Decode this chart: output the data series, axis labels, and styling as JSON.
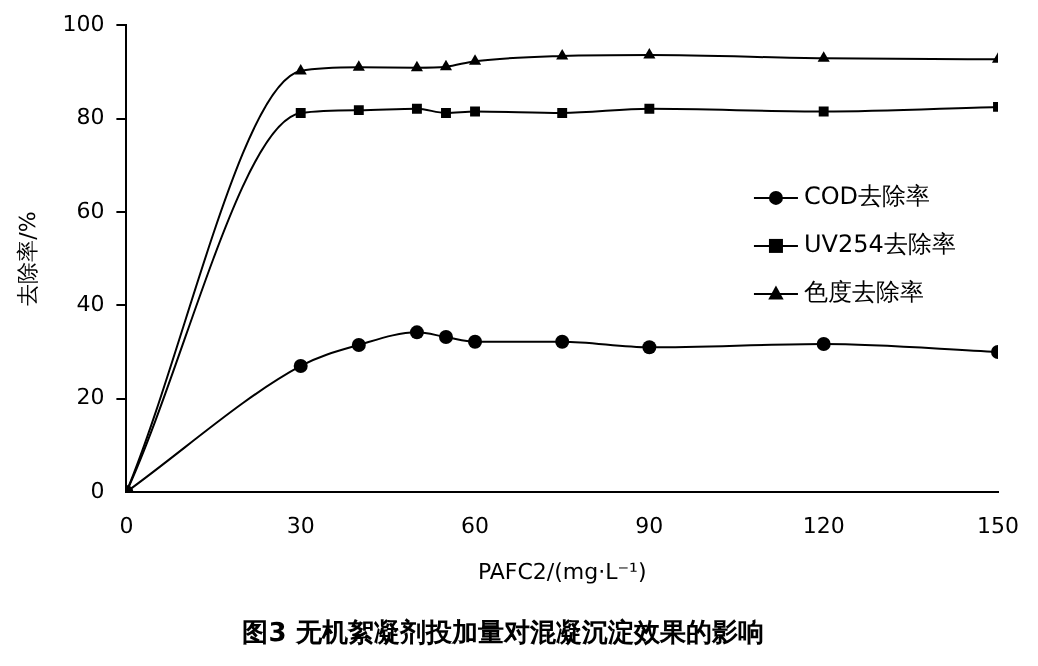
{
  "chart_data": {
    "type": "line",
    "title": "图3 无机絮凝剂投加量对混凝沉淀效果的影响",
    "xlabel": "PAFC2/(mg·L⁻¹)",
    "ylabel": "去除率/%",
    "x": [
      0,
      30,
      40,
      50,
      55,
      60,
      75,
      90,
      120,
      150
    ],
    "series": [
      {
        "name": "COD去除率",
        "color": "#000000",
        "marker": "circle",
        "values": [
          0,
          27,
          31.5,
          34.2,
          33.2,
          32.2,
          32.2,
          31,
          31.7,
          30
        ]
      },
      {
        "name": "UV254去除率",
        "color": "#000000",
        "marker": "square",
        "values": [
          0,
          81.2,
          81.8,
          82.1,
          81.2,
          81.5,
          81.2,
          82.1,
          81.5,
          82.5
        ]
      },
      {
        "name": "色度去除率",
        "color": "#000000",
        "marker": "triangle",
        "values": [
          0,
          90.2,
          91,
          90.9,
          91.1,
          92.3,
          93.4,
          93.6,
          92.9,
          92.7
        ]
      }
    ],
    "xlim": [
      0,
      150
    ],
    "xticks": [
      0,
      30,
      60,
      90,
      120,
      150
    ],
    "ylim": [
      0,
      100
    ],
    "yticks": [
      0,
      20,
      40,
      60,
      80,
      100
    ],
    "grid": false,
    "legend": "right",
    "line_style": "solid"
  }
}
